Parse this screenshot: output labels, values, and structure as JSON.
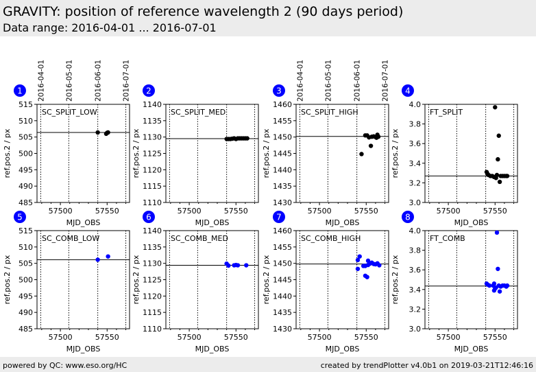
{
  "header": {
    "title": "GRAVITY: position of reference wavelength 2 (90 days period)",
    "subtitle": "Data range: 2016-04-01 ... 2016-07-01"
  },
  "footer": {
    "left": "powered by QC: www.eso.org/HC",
    "right": "created by trendPlotter v4.0b1 on 2019-03-21T12:46:16"
  },
  "colors": {
    "split": "#000000",
    "comb": "#0000ff",
    "badge": "#0000ff"
  },
  "chart_data": [
    {
      "type": "scatter",
      "id": "1",
      "label": "SC_SPLIT_LOW",
      "xlabel": "MJD_OBS",
      "ylabel": "ref.pos.2 / px",
      "xlim": [
        57475,
        57574
      ],
      "ylim": [
        485,
        515
      ],
      "yticks": [
        485,
        490,
        495,
        500,
        505,
        510,
        515
      ],
      "xticks": [
        57500,
        57550
      ],
      "date_lines": [
        57479,
        57509,
        57540,
        57570
      ],
      "date_labels": [
        "2016-04-01",
        "2016-05-01",
        "2016-06-01",
        "2016-07-01"
      ],
      "show_dates": true,
      "ref": 506.4,
      "color": "split",
      "points": [
        [
          57540,
          506.4
        ],
        [
          57549,
          506.0
        ],
        [
          57550,
          506.3
        ],
        [
          57551,
          506.4
        ]
      ]
    },
    {
      "type": "scatter",
      "id": "2",
      "label": "SC_SPLIT_MED",
      "xlabel": "MJD_OBS",
      "ylabel": "ref.pos.2 / px",
      "xlim": [
        57475,
        57574
      ],
      "ylim": [
        1110,
        1140
      ],
      "yticks": [
        1110,
        1115,
        1120,
        1125,
        1130,
        1135,
        1140
      ],
      "xticks": [
        57500,
        57550
      ],
      "date_lines": [
        57479,
        57509,
        57540,
        57570
      ],
      "show_dates": false,
      "ref": 1129.5,
      "color": "split",
      "points": [
        [
          57540,
          1129.4
        ],
        [
          57542,
          1129.4
        ],
        [
          57544,
          1129.4
        ],
        [
          57546,
          1129.5
        ],
        [
          57548,
          1129.6
        ],
        [
          57550,
          1129.4
        ],
        [
          57552,
          1129.6
        ],
        [
          57554,
          1129.6
        ],
        [
          57556,
          1129.6
        ],
        [
          57558,
          1129.6
        ],
        [
          57560,
          1129.6
        ],
        [
          57562,
          1129.6
        ]
      ]
    },
    {
      "type": "scatter",
      "id": "3",
      "label": "SC_SPLIT_HIGH",
      "xlabel": "MJD_OBS",
      "ylabel": "ref.pos.2 / px",
      "xlim": [
        57475,
        57574
      ],
      "ylim": [
        1430,
        1460
      ],
      "yticks": [
        1430,
        1435,
        1440,
        1445,
        1450,
        1455,
        1460
      ],
      "xticks": [
        57500,
        57550
      ],
      "date_lines": [
        57479,
        57509,
        57540,
        57570
      ],
      "date_labels": [
        "2016-04-01",
        "2016-05-01",
        "2016-06-01",
        "2016-07-01"
      ],
      "show_dates": true,
      "ref": 1450.2,
      "color": "split",
      "points": [
        [
          57545,
          1444.8
        ],
        [
          57549,
          1450.5
        ],
        [
          57551,
          1450.5
        ],
        [
          57553,
          1449.9
        ],
        [
          57555,
          1447.3
        ],
        [
          57556,
          1450.1
        ],
        [
          57558,
          1450.2
        ],
        [
          57560,
          1450.0
        ],
        [
          57561,
          1449.8
        ],
        [
          57562,
          1450.7
        ],
        [
          57563,
          1450.1
        ]
      ]
    },
    {
      "type": "scatter",
      "id": "4",
      "label": "FT_SPLIT",
      "xlabel": "MJD_OBS",
      "ylabel": "ref.pos.2 / px",
      "xlim": [
        57475,
        57574
      ],
      "ylim": [
        3.0,
        4.0
      ],
      "yticks": [
        3.0,
        3.2,
        3.4,
        3.6,
        3.8,
        4.0
      ],
      "xticks": [
        57500,
        57550
      ],
      "date_lines": [
        57479,
        57509,
        57540,
        57570
      ],
      "show_dates": false,
      "ref": 3.27,
      "color": "split",
      "points": [
        [
          57541,
          3.31
        ],
        [
          57542,
          3.29
        ],
        [
          57543,
          3.28
        ],
        [
          57545,
          3.27
        ],
        [
          57547,
          3.27
        ],
        [
          57549,
          3.26
        ],
        [
          57550,
          3.97
        ],
        [
          57551,
          3.25
        ],
        [
          57552,
          3.28
        ],
        [
          57553,
          3.44
        ],
        [
          57554,
          3.68
        ],
        [
          57555,
          3.21
        ],
        [
          57556,
          3.27
        ],
        [
          57558,
          3.27
        ],
        [
          57560,
          3.27
        ],
        [
          57562,
          3.27
        ],
        [
          57563,
          3.27
        ]
      ]
    },
    {
      "type": "scatter",
      "id": "5",
      "label": "SC_COMB_LOW",
      "xlabel": "MJD_OBS",
      "ylabel": "ref.pos.2 / px",
      "xlim": [
        57475,
        57574
      ],
      "ylim": [
        485,
        515
      ],
      "yticks": [
        485,
        490,
        495,
        500,
        505,
        510,
        515
      ],
      "xticks": [
        57500,
        57550
      ],
      "date_lines": [
        57479,
        57509,
        57540,
        57570
      ],
      "show_dates": false,
      "ref": 506.1,
      "color": "comb",
      "points": [
        [
          57540,
          506.1
        ],
        [
          57551,
          507.1
        ]
      ]
    },
    {
      "type": "scatter",
      "id": "6",
      "label": "SC_COMB_MED",
      "xlabel": "MJD_OBS",
      "ylabel": "ref.pos.2 / px",
      "xlim": [
        57475,
        57574
      ],
      "ylim": [
        1110,
        1140
      ],
      "yticks": [
        1110,
        1115,
        1120,
        1125,
        1130,
        1135,
        1140
      ],
      "xticks": [
        57500,
        57550
      ],
      "date_lines": [
        57479,
        57509,
        57540,
        57570
      ],
      "show_dates": false,
      "ref": 1129.4,
      "color": "comb",
      "points": [
        [
          57540,
          1129.9
        ],
        [
          57542,
          1129.3
        ],
        [
          57548,
          1129.4
        ],
        [
          57550,
          1129.5
        ],
        [
          57552,
          1129.4
        ],
        [
          57561,
          1129.4
        ]
      ]
    },
    {
      "type": "scatter",
      "id": "7",
      "label": "SC_COMB_HIGH",
      "xlabel": "MJD_OBS",
      "ylabel": "ref.pos.2 / px",
      "xlim": [
        57475,
        57574
      ],
      "ylim": [
        1430,
        1460
      ],
      "yticks": [
        1430,
        1435,
        1440,
        1445,
        1450,
        1455,
        1460
      ],
      "xticks": [
        57500,
        57550
      ],
      "date_lines": [
        57479,
        57509,
        57540,
        57570
      ],
      "show_dates": false,
      "ref": 1449.8,
      "color": "comb",
      "points": [
        [
          57541,
          1451.0
        ],
        [
          57541,
          1448.3
        ],
        [
          57543,
          1452.1
        ],
        [
          57547,
          1449.2
        ],
        [
          57549,
          1449.2
        ],
        [
          57549,
          1446.2
        ],
        [
          57551,
          1445.8
        ],
        [
          57552,
          1449.5
        ],
        [
          57552,
          1450.8
        ],
        [
          57554,
          1449.9
        ],
        [
          57556,
          1450.2
        ],
        [
          57558,
          1449.8
        ],
        [
          57560,
          1449.7
        ],
        [
          57562,
          1450.0
        ],
        [
          57564,
          1449.4
        ]
      ]
    },
    {
      "type": "scatter",
      "id": "8",
      "label": "FT_COMB",
      "xlabel": "MJD_OBS",
      "ylabel": "ref.pos.2 / px",
      "xlim": [
        57475,
        57574
      ],
      "ylim": [
        3.0,
        4.0
      ],
      "yticks": [
        3.0,
        3.2,
        3.4,
        3.6,
        3.8,
        4.0
      ],
      "xticks": [
        57500,
        57550
      ],
      "date_lines": [
        57479,
        57509,
        57540,
        57570
      ],
      "show_dates": false,
      "ref": 3.435,
      "color": "comb",
      "points": [
        [
          57541,
          3.46
        ],
        [
          57542,
          3.45
        ],
        [
          57544,
          3.44
        ],
        [
          57548,
          3.44
        ],
        [
          57549,
          3.46
        ],
        [
          57549,
          3.39
        ],
        [
          57550,
          3.41
        ],
        [
          57551,
          3.42
        ],
        [
          57552,
          3.98
        ],
        [
          57553,
          3.61
        ],
        [
          57554,
          3.44
        ],
        [
          57555,
          3.38
        ],
        [
          57556,
          3.43
        ],
        [
          57558,
          3.44
        ],
        [
          57560,
          3.44
        ],
        [
          57562,
          3.43
        ],
        [
          57563,
          3.44
        ]
      ]
    }
  ]
}
